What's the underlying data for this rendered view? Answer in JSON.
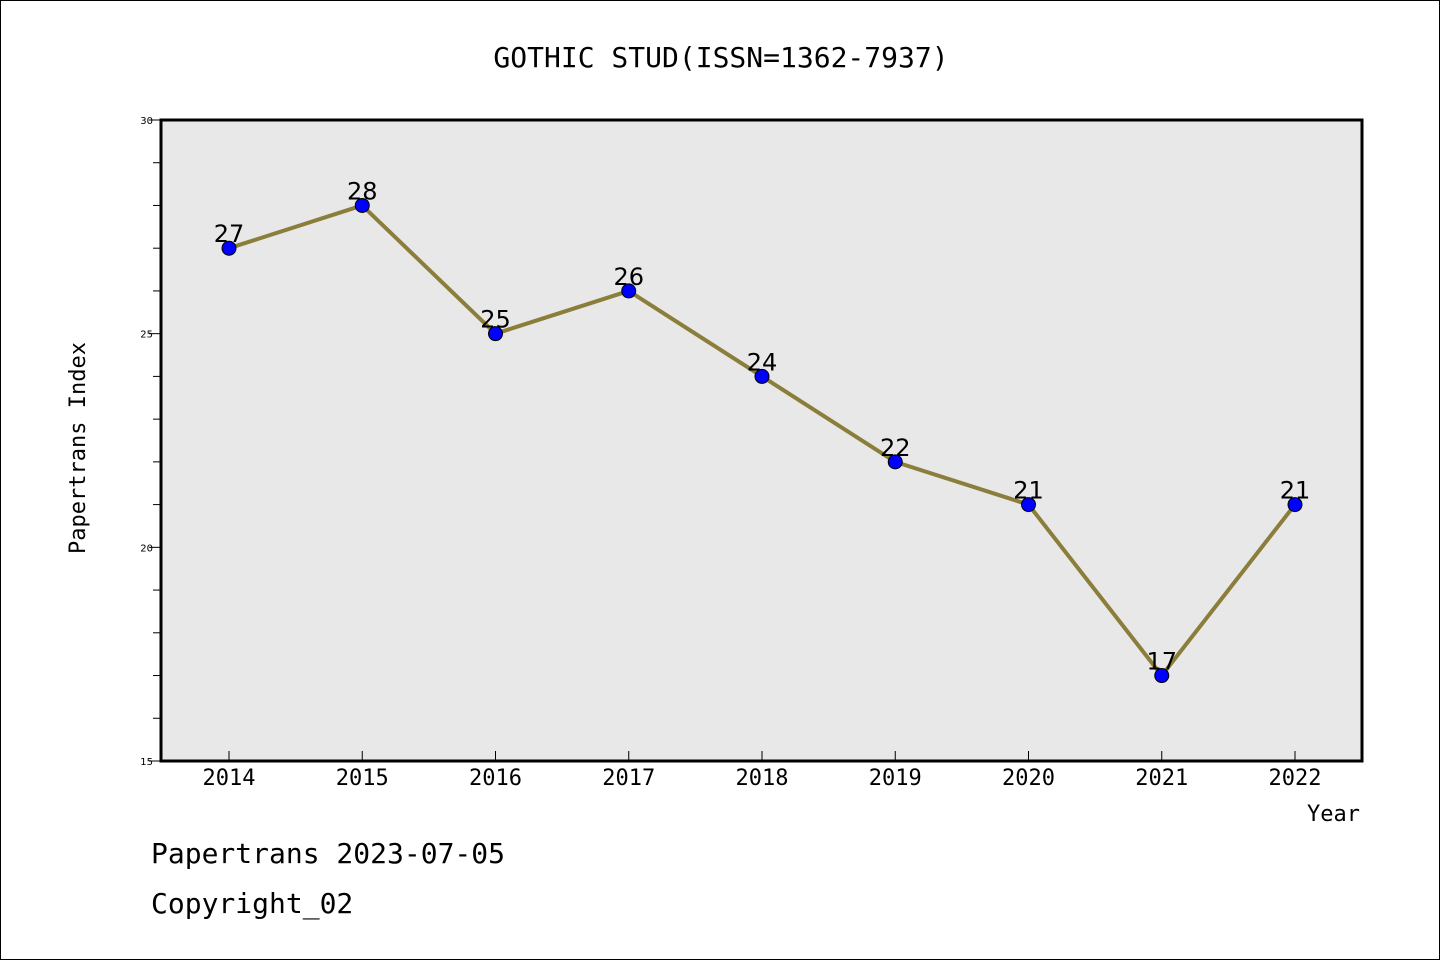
{
  "chart_data": {
    "type": "line",
    "title": "GOTHIC STUD(ISSN=1362-7937)",
    "xlabel": "Year",
    "ylabel": "Papertrans Index",
    "categories": [
      "2014",
      "2015",
      "2016",
      "2017",
      "2018",
      "2019",
      "2020",
      "2021",
      "2022"
    ],
    "series": [
      {
        "values": [
          27,
          28,
          25,
          26,
          24,
          22,
          21,
          17,
          21
        ]
      }
    ],
    "ylim": [
      15,
      30
    ],
    "yticks": [
      "15",
      "20",
      "25",
      "30"
    ],
    "grid": false,
    "legend": "none",
    "colors": {
      "line": "#8B7D3A",
      "marker": "#0000FF",
      "plot_background": "#E8E8E8"
    }
  },
  "footer": {
    "line1": "Papertrans 2023-07-05",
    "line2": "Copyright_02"
  }
}
